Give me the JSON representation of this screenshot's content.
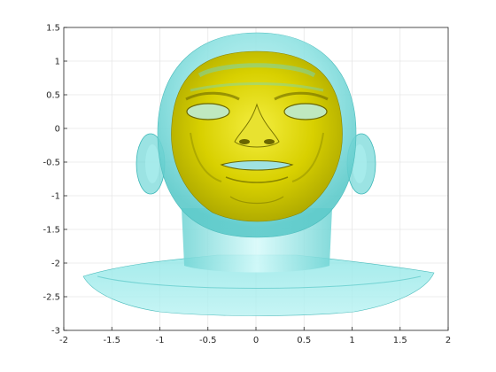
{
  "chart_data": {
    "type": "surface-3d",
    "title": "",
    "xlabel": "",
    "ylabel": "",
    "xlim": [
      -2,
      2
    ],
    "ylim": [
      -3,
      1.5
    ],
    "grid": true,
    "x_ticks": [
      "-2",
      "-1.5",
      "-1",
      "-0.5",
      "0",
      "0.5",
      "1",
      "1.5",
      "2"
    ],
    "x_tick_values": [
      -2,
      -1.5,
      -1,
      -0.5,
      0,
      0.5,
      1,
      1.5,
      2
    ],
    "y_ticks": [
      "-3",
      "-2.5",
      "-2",
      "-1.5",
      "-1",
      "-0.5",
      "0",
      "0.5",
      "1",
      "1.5"
    ],
    "y_tick_values": [
      -3,
      -2.5,
      -2,
      -1.5,
      -1,
      -0.5,
      0,
      0.5,
      1,
      1.5
    ],
    "surfaces": [
      {
        "name": "head",
        "color": "#00c8c8",
        "opacity": 0.45
      },
      {
        "name": "face",
        "color": "#d8d000",
        "opacity": 1.0
      }
    ]
  }
}
